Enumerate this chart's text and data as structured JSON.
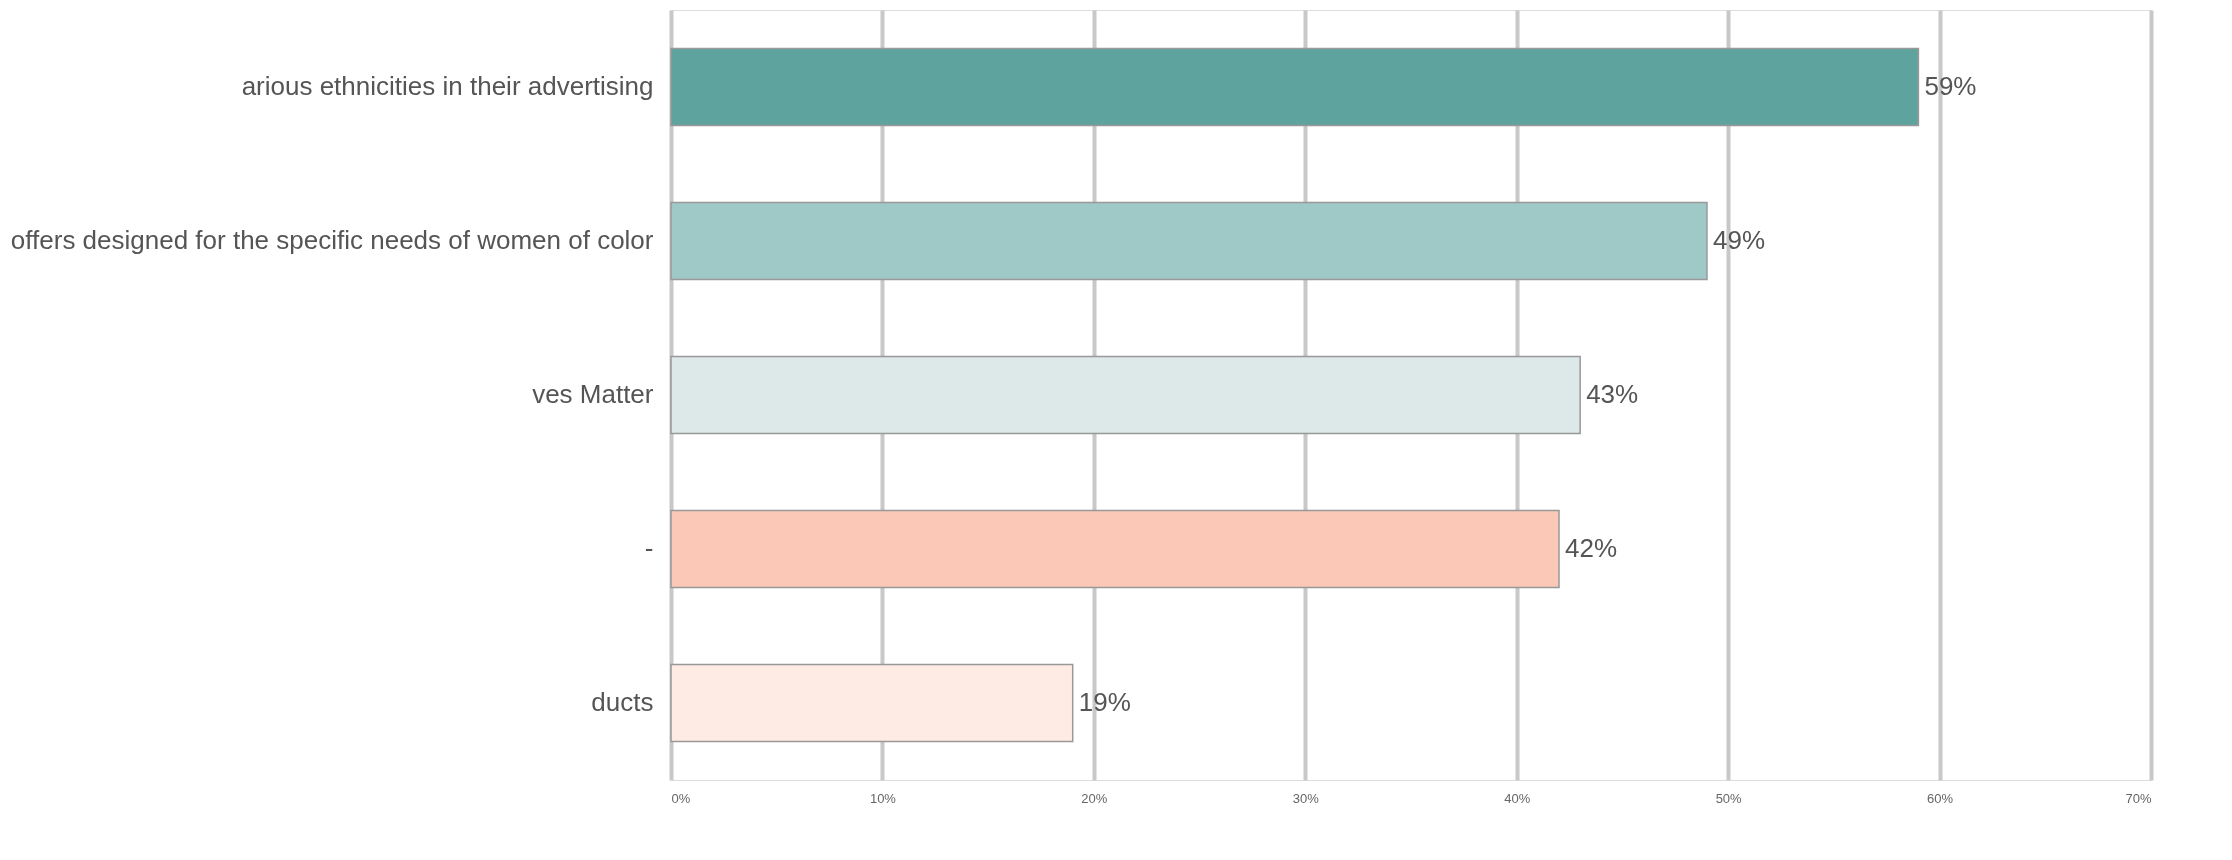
{
  "chart_data": {
    "type": "bar",
    "orientation": "horizontal",
    "categories": [
      "arious ethnicities in their advertising",
      "offers designed for the specific needs of women of color",
      "ves Matter",
      "-",
      "ducts"
    ],
    "values": [
      59,
      49,
      43,
      42,
      19
    ],
    "colors": [
      "#5fa39e",
      "#9fc9c6",
      "#dde9e8",
      "#fbc8b8",
      "#fdebe4"
    ],
    "value_labels": [
      "59%",
      "49%",
      "43%",
      "42%",
      "19%"
    ],
    "xlim": [
      0,
      70
    ],
    "xticks": [
      {
        "value": 0,
        "label": "0%"
      },
      {
        "value": 10,
        "label": "10%"
      },
      {
        "value": 20,
        "label": "20%"
      },
      {
        "value": 30,
        "label": "30%"
      },
      {
        "value": 40,
        "label": "40%"
      },
      {
        "value": 50,
        "label": "50%"
      },
      {
        "value": 60,
        "label": "60%"
      },
      {
        "value": 70,
        "label": "70%"
      }
    ],
    "grid": "x"
  }
}
